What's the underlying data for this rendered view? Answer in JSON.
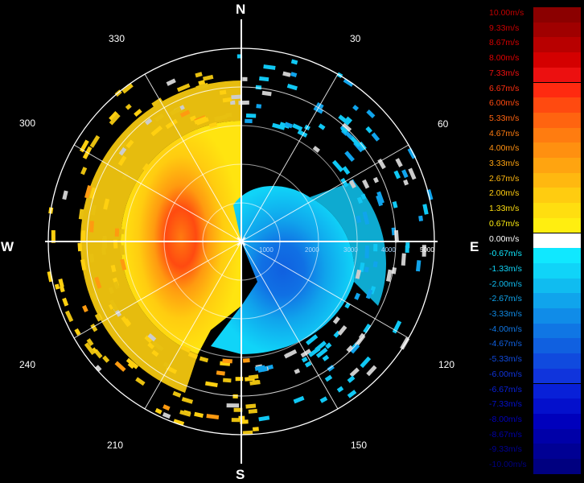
{
  "cardinals": {
    "n": "N",
    "e": "E",
    "s": "S",
    "w": "W"
  },
  "bearings": [
    "30",
    "60",
    "120",
    "150",
    "210",
    "240",
    "300",
    "330"
  ],
  "range_labels": [
    "1000",
    "2000",
    "3000",
    "4000",
    "5000"
  ],
  "legend": [
    {
      "label": "10.00m/s",
      "color": "#8b0000",
      "text_color": "#c00000"
    },
    {
      "label": "9.33m/s",
      "color": "#a00000",
      "text_color": "#c80000"
    },
    {
      "label": "8.67m/s",
      "color": "#b80000",
      "text_color": "#d40000"
    },
    {
      "label": "8.00m/s",
      "color": "#d40000",
      "text_color": "#e00000"
    },
    {
      "label": "7.33m/s",
      "color": "#ec1010",
      "text_color": "#f01010"
    },
    {
      "label": "6.67m/s",
      "color": "#ff2a10",
      "text_color": "#ff3010"
    },
    {
      "label": "6.00m/s",
      "color": "#ff4a10",
      "text_color": "#ff4a10"
    },
    {
      "label": "5.33m/s",
      "color": "#ff6410",
      "text_color": "#ff6410"
    },
    {
      "label": "4.67m/s",
      "color": "#ff7c10",
      "text_color": "#ff7c10"
    },
    {
      "label": "4.00m/s",
      "color": "#ff9010",
      "text_color": "#ff9010"
    },
    {
      "label": "3.33m/s",
      "color": "#ffa410",
      "text_color": "#ffa410"
    },
    {
      "label": "2.67m/s",
      "color": "#ffb810",
      "text_color": "#ffb810"
    },
    {
      "label": "2.00m/s",
      "color": "#ffcc10",
      "text_color": "#ffcc10"
    },
    {
      "label": "1.33m/s",
      "color": "#ffde10",
      "text_color": "#ffde10"
    },
    {
      "label": "0.67m/s",
      "color": "#ffee10",
      "text_color": "#ffee10"
    },
    {
      "label": "0.00m/s",
      "color": "#ffffff",
      "text_color": "#ffffff"
    },
    {
      "label": "-0.67m/s",
      "color": "#10e8ff",
      "text_color": "#10e8ff"
    },
    {
      "label": "-1.33m/s",
      "color": "#10d4f8",
      "text_color": "#10d4f8"
    },
    {
      "label": "-2.00m/s",
      "color": "#10bcf0",
      "text_color": "#10bcf0"
    },
    {
      "label": "-2.67m/s",
      "color": "#10a4ec",
      "text_color": "#10a4ec"
    },
    {
      "label": "-3.33m/s",
      "color": "#108ce8",
      "text_color": "#108ce8"
    },
    {
      "label": "-4.00m/s",
      "color": "#1076e4",
      "text_color": "#1076e4"
    },
    {
      "label": "-4.67m/s",
      "color": "#1060e0",
      "text_color": "#1060e0"
    },
    {
      "label": "-5.33m/s",
      "color": "#104ade",
      "text_color": "#104ade"
    },
    {
      "label": "-6.00m/s",
      "color": "#1034dc",
      "text_color": "#1034dc"
    },
    {
      "label": "-6.67m/s",
      "color": "#0820d8",
      "text_color": "#0820d8"
    },
    {
      "label": "-7.33m/s",
      "color": "#0410cc",
      "text_color": "#0410cc"
    },
    {
      "label": "-8.00m/s",
      "color": "#0000bc",
      "text_color": "#0000bc"
    },
    {
      "label": "-8.67m/s",
      "color": "#0000a8",
      "text_color": "#0000a8"
    },
    {
      "label": "-9.33m/s",
      "color": "#000094",
      "text_color": "#000094"
    },
    {
      "label": "-10.00m/s",
      "color": "#000080",
      "text_color": "#000080"
    }
  ]
}
